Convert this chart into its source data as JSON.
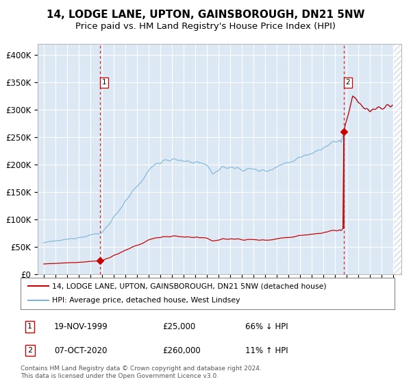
{
  "title": "14, LODGE LANE, UPTON, GAINSBOROUGH, DN21 5NW",
  "subtitle": "Price paid vs. HM Land Registry's House Price Index (HPI)",
  "title_fontsize": 11,
  "subtitle_fontsize": 9.5,
  "background_color": "#dce9f5",
  "grid_color": "#ffffff",
  "ylim": [
    0,
    420000
  ],
  "yticks": [
    0,
    50000,
    100000,
    150000,
    200000,
    250000,
    300000,
    350000,
    400000
  ],
  "ytick_labels": [
    "£0",
    "£50K",
    "£100K",
    "£150K",
    "£200K",
    "£250K",
    "£300K",
    "£350K",
    "£400K"
  ],
  "sale1_year": 1999,
  "sale1_month": 11,
  "sale1_price": 25000,
  "sale2_year": 2020,
  "sale2_month": 10,
  "sale2_price": 260000,
  "hpi_color": "#7ab4d8",
  "property_color": "#cc0000",
  "property_label": "14, LODGE LANE, UPTON, GAINSBOROUGH, DN21 5NW (detached house)",
  "hpi_label": "HPI: Average price, detached house, West Lindsey",
  "legend_entry1_date": "19-NOV-1999",
  "legend_entry1_price": "£25,000",
  "legend_entry1_hpi": "66% ↓ HPI",
  "legend_entry2_date": "07-OCT-2020",
  "legend_entry2_price": "£260,000",
  "legend_entry2_hpi": "11% ↑ HPI",
  "footer": "Contains HM Land Registry data © Crown copyright and database right 2024.\nThis data is licensed under the Open Government Licence v3.0.",
  "xlim_start": 1994.5,
  "xlim_end": 2025.7
}
